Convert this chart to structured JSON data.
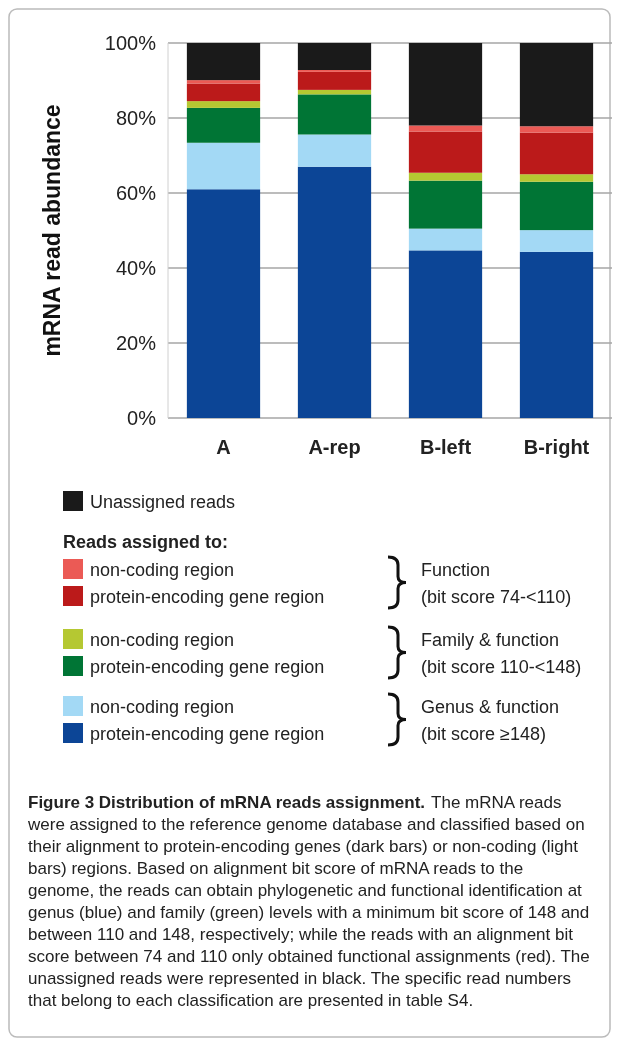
{
  "chart_data": {
    "type": "bar",
    "stacked": true,
    "title": "Figure 3 Distribution of mRNA reads assignment.",
    "ylabel": "mRNA read abundance",
    "legend_title": "Reads assigned to:",
    "categories": [
      "A",
      "A-rep",
      "B-left",
      "B-right"
    ],
    "series": [
      {
        "name": "protein-encoding gene region",
        "color": "#0c4596",
        "values": [
          61.0,
          67.0,
          44.7,
          44.3
        ]
      },
      {
        "name": "non-coding region",
        "color": "#a3d9f5",
        "values": [
          12.4,
          8.6,
          5.8,
          5.8
        ]
      },
      {
        "name": "protein-encoding gene region",
        "color": "#007535",
        "values": [
          9.3,
          10.7,
          12.8,
          12.9
        ]
      },
      {
        "name": "non-coding region",
        "color": "#b5c832",
        "values": [
          1.8,
          1.2,
          2.1,
          2.0
        ]
      },
      {
        "name": "protein-encoding gene region",
        "color": "#bb1a1a",
        "values": [
          4.7,
          4.8,
          11.0,
          11.1
        ]
      },
      {
        "name": "non-coding region",
        "color": "#eb5a55",
        "values": [
          0.9,
          0.5,
          1.6,
          1.7
        ]
      },
      {
        "name": "Unassigned reads",
        "color": "#1a1a1a",
        "values": [
          9.9,
          7.2,
          22.0,
          22.2
        ]
      }
    ],
    "ylim": [
      0,
      100
    ],
    "yticks": [
      {
        "value": 0,
        "label": "0%"
      },
      {
        "value": 20,
        "label": "20%"
      },
      {
        "value": 40,
        "label": "40%"
      },
      {
        "value": 60,
        "label": "60%"
      },
      {
        "value": 80,
        "label": "80%"
      },
      {
        "value": 100,
        "label": "100%"
      }
    ],
    "grid": "y",
    "legend": "bottom",
    "annotations": [
      "Function",
      "(bit score 74-<110)",
      "Family & function",
      "(bit score 110-<148)",
      "Genus & function",
      "(bit score ≥148)",
      "The mRNA reads were assigned to the reference genome database and classified based on their alignment to protein-encoding genes (dark bars) or non-coding (light bars) regions. Based on alignment bit score of mRNA reads to the genome, the reads can obtain phylogenetic and functional identification at genus (blue) and family (green) levels with a minimum bit score of 148 and between 110 and 148, respectively; while the reads with an alignment bit score between 74 and 110 only obtained functional assignments (red). The unassigned reads were represented in black. The specific read numbers that belong to each classification are presented in table S4."
    ]
  }
}
